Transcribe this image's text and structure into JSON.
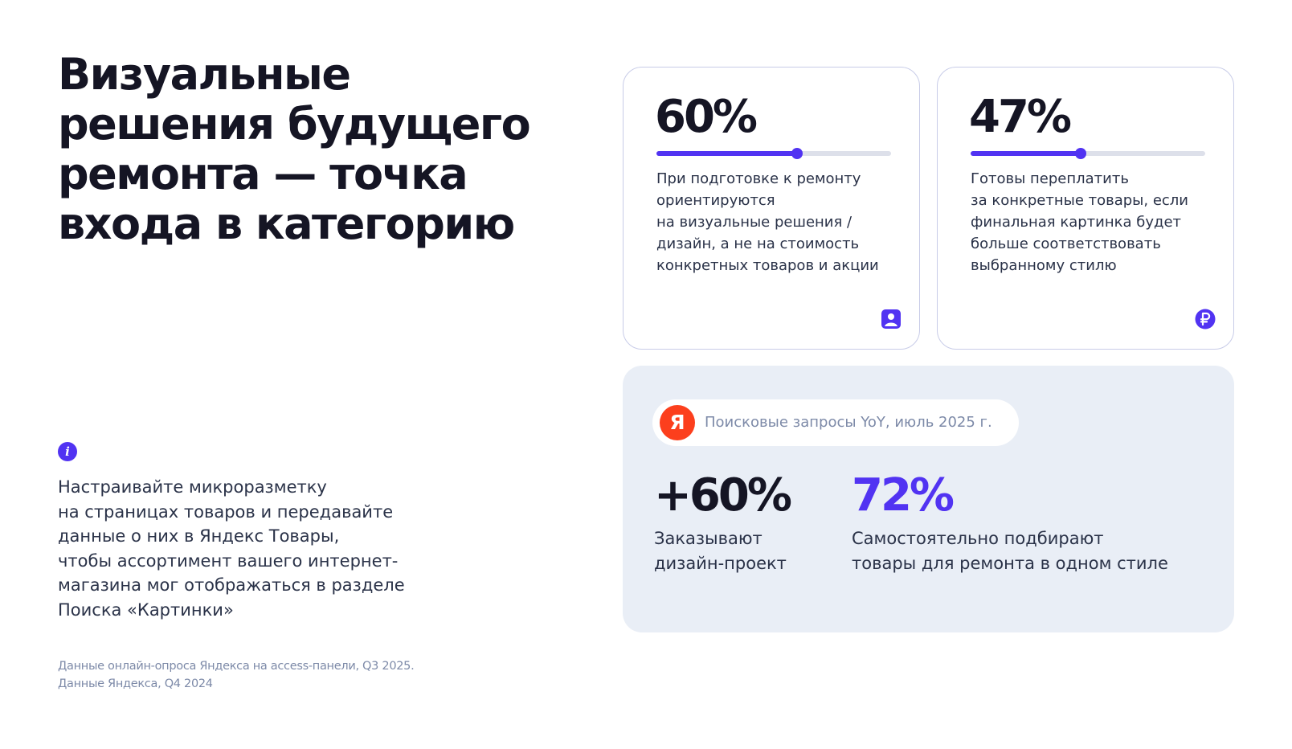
{
  "title": "Визуальные решения будущего ремонта — точка входа в категорию",
  "info": {
    "icon": "info-icon",
    "text": "Настраивайте микроразметку\nна страницах товаров и передавайте\nданные о них в Яндекс Товары,\nчтобы ассортимент вашего интернет-\nмагазина мог отображаться в разделе\nПоиска «Картинки»"
  },
  "sources": "Данные онлайн-опроса Яндекса на access-панели, Q3 2025.\nДанные Яндекса, Q4 2024",
  "cards": [
    {
      "percent": "60%",
      "progress": 0.6,
      "text": "При подготовке к ремонту\nориентируются\nна визуальные решения /\nдизайн, а не на стоимость\nконкретных товаров и акции",
      "icon": "image-icon"
    },
    {
      "percent": "47%",
      "progress": 0.47,
      "text": "Готовы переплатить\nза конкретные товары, если\nфинальная картинка будет\nбольше соответствовать\nвыбранному стилю",
      "icon": "ruble-icon"
    }
  ],
  "panel": {
    "badge_logo": "Я",
    "badge_text": "Поисковые запросы YoY, июль 2025 г.",
    "stats": [
      {
        "value": "+60%",
        "label": "Заказывают\nдизайн-проект"
      },
      {
        "value": "72%",
        "label": "Самостоятельно подбирают\nтовары для ремонта в одном стиле"
      }
    ]
  },
  "colors": {
    "accent": "#5133f2",
    "yandex_red": "#fc3f1d",
    "panel_bg": "#e9eef6",
    "card_border": "#c8cce8",
    "muted_text": "#7d8aa8"
  }
}
